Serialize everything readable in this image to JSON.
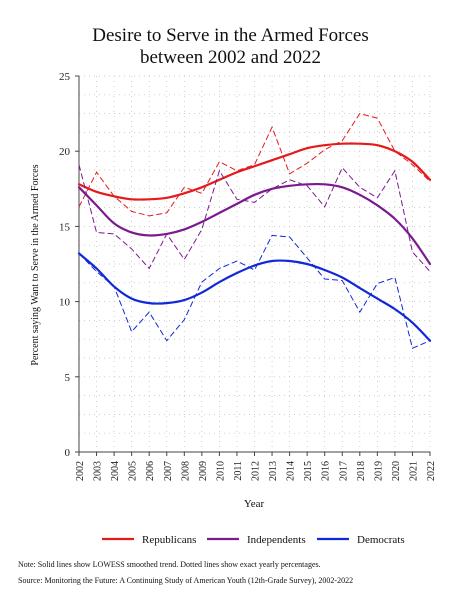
{
  "chart_data": {
    "type": "line",
    "title_lines": [
      "Desire to Serve in the Armed Forces",
      "between 2002 and 2022"
    ],
    "xlabel": "Year",
    "ylabel": "Percent saying Want to Serve in the Armed Forces",
    "x": [
      2002,
      2003,
      2004,
      2005,
      2006,
      2007,
      2008,
      2009,
      2010,
      2011,
      2012,
      2013,
      2014,
      2015,
      2016,
      2017,
      2018,
      2019,
      2020,
      2021,
      2022
    ],
    "x_tick_labels": [
      "2002",
      "2003",
      "2004",
      "2005",
      "2006",
      "2007",
      "2008",
      "2009",
      "2010",
      "2011",
      "2012",
      "2013",
      "2014",
      "2015",
      "2016",
      "2017",
      "2018",
      "2019",
      "2020",
      "2021",
      "2022"
    ],
    "y_ticks": [
      0,
      5,
      10,
      15,
      20,
      25
    ],
    "y_tick_labels": [
      "0",
      "5",
      "10",
      "15",
      "20",
      "25"
    ],
    "ylim": [
      0,
      25
    ],
    "grid": true,
    "legend_position": "bottom",
    "series": [
      {
        "name": "Republicans",
        "color": "#e41a1c",
        "yearly": [
          16.3,
          18.6,
          17.0,
          16.0,
          15.7,
          15.9,
          17.6,
          17.2,
          19.3,
          18.7,
          19.1,
          21.6,
          18.5,
          19.2,
          20.1,
          20.7,
          22.5,
          22.2,
          20.0,
          19.1,
          18.0
        ],
        "smoothed": [
          17.8,
          17.3,
          17.0,
          16.8,
          16.8,
          16.9,
          17.2,
          17.6,
          18.1,
          18.6,
          19.0,
          19.4,
          19.8,
          20.2,
          20.4,
          20.5,
          20.5,
          20.4,
          20.0,
          19.3,
          18.1
        ]
      },
      {
        "name": "Independents",
        "color": "#7b1a8c",
        "yearly": [
          19.1,
          14.6,
          14.5,
          13.5,
          12.2,
          14.5,
          12.8,
          14.8,
          18.7,
          16.8,
          16.6,
          17.5,
          18.1,
          17.7,
          16.3,
          18.9,
          17.6,
          16.9,
          18.7,
          13.3,
          12.0
        ],
        "smoothed": [
          17.6,
          16.4,
          15.2,
          14.6,
          14.4,
          14.5,
          14.8,
          15.3,
          15.9,
          16.5,
          17.1,
          17.5,
          17.7,
          17.8,
          17.8,
          17.6,
          17.1,
          16.4,
          15.5,
          14.2,
          12.5
        ]
      },
      {
        "name": "Democrats",
        "color": "#1028d8",
        "yearly": [
          13.2,
          12.0,
          11.0,
          8.0,
          9.3,
          7.4,
          8.8,
          11.3,
          12.2,
          12.7,
          12.1,
          14.4,
          14.3,
          12.9,
          11.5,
          11.4,
          9.3,
          11.2,
          11.6,
          6.9,
          7.4
        ],
        "smoothed": [
          13.2,
          12.2,
          11.0,
          10.2,
          9.9,
          9.9,
          10.1,
          10.6,
          11.3,
          11.9,
          12.4,
          12.7,
          12.7,
          12.5,
          12.1,
          11.6,
          10.9,
          10.2,
          9.5,
          8.6,
          7.4
        ]
      }
    ]
  },
  "notes": {
    "note": "Note: Solid lines show LOWESS smoothed trend. Dotted lines show exact yearly percentages.",
    "source": "Source: Monitoring the Future: A Continuing Study of American Youth (12th-Grade Survey), 2002-2022"
  }
}
